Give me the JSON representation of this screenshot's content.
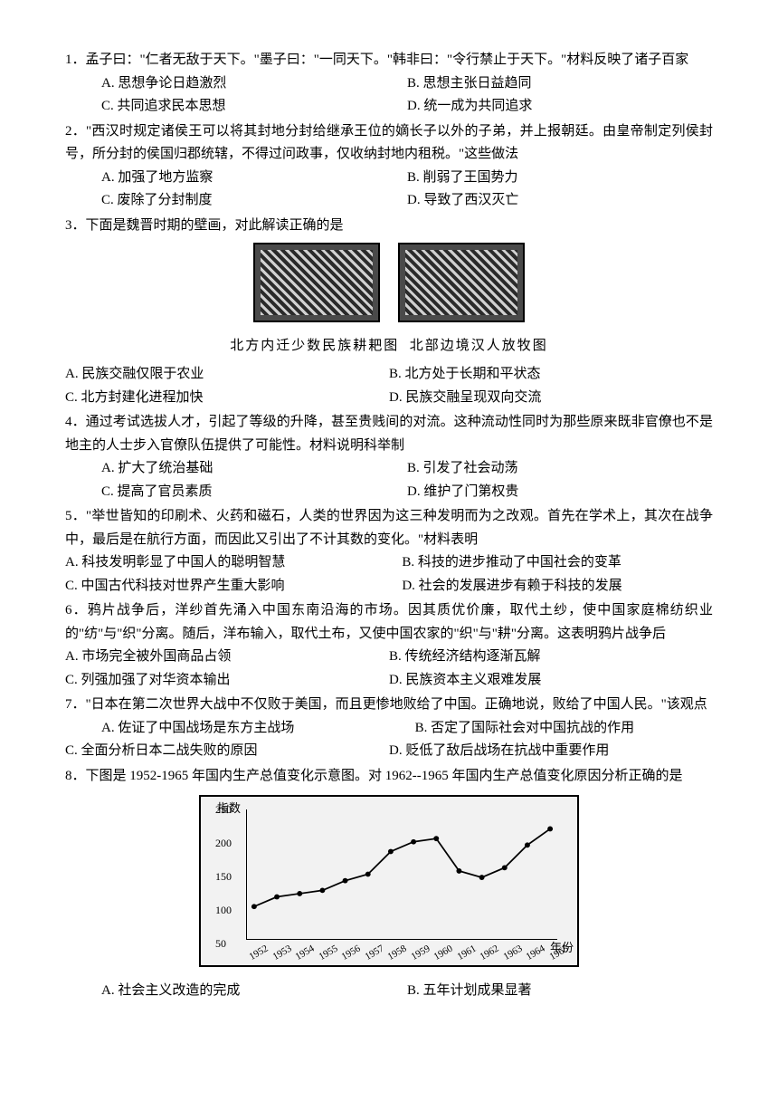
{
  "q1": {
    "text": "1．孟子曰：\"仁者无敌于天下。\"墨子曰：\"一同天下。\"韩非曰：\"令行禁止于天下。\"材料反映了诸子百家",
    "A": "A. 思想争论日趋激烈",
    "B": "B. 思想主张日益趋同",
    "C": "C. 共同追求民本思想",
    "D": "D. 统一成为共同追求"
  },
  "q2": {
    "text": "2．\"西汉时规定诸侯王可以将其封地分封给继承王位的嫡长子以外的子弟，并上报朝廷。由皇帝制定列侯封号，所分封的侯国归郡统辖，不得过问政事，仅收纳封地内租税。\"这些做法",
    "A": "A. 加强了地方监察",
    "B": "B. 削弱了王国势力",
    "C": "C. 废除了分封制度",
    "D": "D. 导致了西汉灭亡"
  },
  "q3": {
    "text": "3．下面是魏晋时期的壁画，对此解读正确的是",
    "caption1": "北方内迁少数民族耕耙图",
    "caption2": "北部边境汉人放牧图",
    "A": "A. 民族交融仅限于农业",
    "B": "B. 北方处于长期和平状态",
    "C": "C. 北方封建化进程加快",
    "D": "D. 民族交融呈现双向交流"
  },
  "q4": {
    "text": "4．通过考试选拔人才，引起了等级的升降，甚至贵贱间的对流。这种流动性同时为那些原来既非官僚也不是地主的人士步入官僚队伍提供了可能性。材料说明科举制",
    "A": "A. 扩大了统治基础",
    "B": "B. 引发了社会动荡",
    "C": "C. 提高了官员素质",
    "D": "D. 维护了门第权贵"
  },
  "q5": {
    "text": "5．\"举世皆知的印刷术、火药和磁石，人类的世界因为这三种发明而为之改观。首先在学术上，其次在战争中，最后是在航行方面，而因此又引出了不计其数的变化。\"材料表明",
    "A": "A. 科技发明彰显了中国人的聪明智慧",
    "B": "B. 科技的进步推动了中国社会的变革",
    "C": "C. 中国古代科技对世界产生重大影响",
    "D": "D. 社会的发展进步有赖于科技的发展"
  },
  "q6": {
    "text": "6．鸦片战争后，洋纱首先涌入中国东南沿海的市场。因其质优价廉，取代土纱，使中国家庭棉纺织业的\"纺\"与\"织\"分离。随后，洋布输入，取代土布，又使中国农家的\"织\"与\"耕\"分离。这表明鸦片战争后",
    "A": "A. 市场完全被外国商品占领",
    "B": "B. 传统经济结构逐渐瓦解",
    "C": "C. 列强加强了对华资本输出",
    "D": "D. 民族资本主义艰难发展"
  },
  "q7": {
    "text": "7．\"日本在第二次世界大战中不仅败于美国，而且更惨地败给了中国。正确地说，败给了中国人民。\"该观点",
    "A": "A. 佐证了中国战场是东方主战场",
    "B": "B. 否定了国际社会对中国抗战的作用",
    "C": "C. 全面分析日本二战失败的原因",
    "D": "D. 贬低了敌后战场在抗战中重要作用"
  },
  "q8": {
    "text": "8．下图是 1952-1965 年国内生产总值变化示意图。对 1962--1965 年国内生产总值变化原因分析正确的是",
    "A": "A. 社会主义改造的完成",
    "B": "B. 五年计划成果显著",
    "chart": {
      "y_axis_label": "指数",
      "y_ticks": [
        "50",
        "100",
        "150",
        "200",
        "250"
      ],
      "x_ticks": [
        "1952",
        "1953",
        "1954",
        "1955",
        "1956",
        "1957",
        "1958",
        "1959",
        "1960",
        "1961",
        "1962",
        "1963",
        "1964",
        "1965"
      ],
      "x_label": "年份",
      "values": [
        100,
        115,
        120,
        125,
        140,
        150,
        185,
        200,
        205,
        155,
        145,
        160,
        195,
        220
      ],
      "ylim": [
        50,
        250
      ],
      "line_color": "#000000",
      "background_color": "#f2f2f2",
      "point_radius": 3
    }
  }
}
